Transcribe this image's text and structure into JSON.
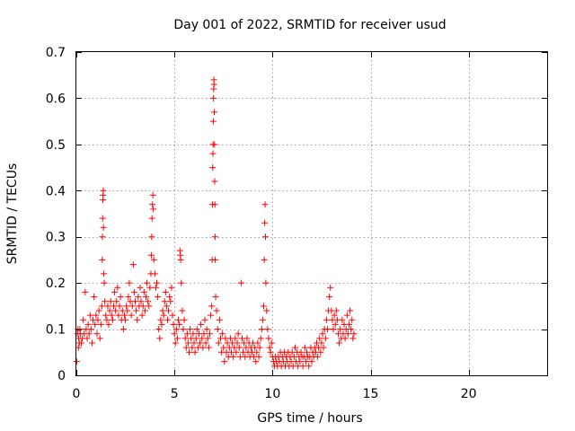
{
  "chart_data": {
    "type": "scatter",
    "title": "Day 001 of 2022, SRMTID for receiver usud",
    "xlabel": "GPS time / hours",
    "ylabel": "SRMTID / TECUs",
    "xlim": [
      0,
      24
    ],
    "ylim": [
      0,
      0.7
    ],
    "xticks": [
      0,
      5,
      10,
      15,
      20
    ],
    "yticks": [
      0,
      0.1,
      0.2,
      0.3,
      0.4,
      0.5,
      0.6,
      0.7
    ],
    "xtick_labels": [
      "0",
      "5",
      "10",
      "15",
      "20"
    ],
    "ytick_labels": [
      "0",
      "0.1",
      "0.2",
      "0.3",
      "0.4",
      "0.5",
      "0.6",
      "0.7"
    ],
    "grid": true,
    "marker": "+",
    "color": "#ff0000",
    "series": [
      {
        "name": "SRMTID",
        "points": [
          [
            0.02,
            0.03
          ],
          [
            0.05,
            0.09
          ],
          [
            0.08,
            0.1
          ],
          [
            0.1,
            0.06
          ],
          [
            0.12,
            0.08
          ],
          [
            0.15,
            0.07
          ],
          [
            0.18,
            0.1
          ],
          [
            0.2,
            0.09
          ],
          [
            0.25,
            0.07
          ],
          [
            0.3,
            0.08
          ],
          [
            0.35,
            0.12
          ],
          [
            0.4,
            0.09
          ],
          [
            0.45,
            0.18
          ],
          [
            0.5,
            0.1
          ],
          [
            0.55,
            0.08
          ],
          [
            0.6,
            0.11
          ],
          [
            0.65,
            0.09
          ],
          [
            0.7,
            0.13
          ],
          [
            0.75,
            0.1
          ],
          [
            0.8,
            0.07
          ],
          [
            0.85,
            0.12
          ],
          [
            0.9,
            0.17
          ],
          [
            0.95,
            0.11
          ],
          [
            1.0,
            0.13
          ],
          [
            1.05,
            0.09
          ],
          [
            1.1,
            0.12
          ],
          [
            1.15,
            0.14
          ],
          [
            1.2,
            0.08
          ],
          [
            1.25,
            0.11
          ],
          [
            1.3,
            0.15
          ],
          [
            1.32,
            0.25
          ],
          [
            1.33,
            0.3
          ],
          [
            1.34,
            0.34
          ],
          [
            1.35,
            0.38
          ],
          [
            1.36,
            0.39
          ],
          [
            1.37,
            0.4
          ],
          [
            1.38,
            0.32
          ],
          [
            1.4,
            0.22
          ],
          [
            1.42,
            0.2
          ],
          [
            1.45,
            0.16
          ],
          [
            1.5,
            0.13
          ],
          [
            1.55,
            0.12
          ],
          [
            1.6,
            0.15
          ],
          [
            1.65,
            0.11
          ],
          [
            1.7,
            0.14
          ],
          [
            1.75,
            0.16
          ],
          [
            1.8,
            0.13
          ],
          [
            1.85,
            0.12
          ],
          [
            1.9,
            0.15
          ],
          [
            1.95,
            0.18
          ],
          [
            2.0,
            0.14
          ],
          [
            2.05,
            0.16
          ],
          [
            2.1,
            0.19
          ],
          [
            2.15,
            0.13
          ],
          [
            2.2,
            0.15
          ],
          [
            2.25,
            0.17
          ],
          [
            2.3,
            0.12
          ],
          [
            2.35,
            0.14
          ],
          [
            2.4,
            0.1
          ],
          [
            2.45,
            0.13
          ],
          [
            2.5,
            0.12
          ],
          [
            2.55,
            0.15
          ],
          [
            2.6,
            0.14
          ],
          [
            2.65,
            0.17
          ],
          [
            2.7,
            0.2
          ],
          [
            2.75,
            0.16
          ],
          [
            2.8,
            0.13
          ],
          [
            2.85,
            0.15
          ],
          [
            2.9,
            0.24
          ],
          [
            2.95,
            0.18
          ],
          [
            3.0,
            0.16
          ],
          [
            3.05,
            0.14
          ],
          [
            3.1,
            0.12
          ],
          [
            3.15,
            0.17
          ],
          [
            3.2,
            0.15
          ],
          [
            3.25,
            0.19
          ],
          [
            3.3,
            0.16
          ],
          [
            3.35,
            0.13
          ],
          [
            3.4,
            0.15
          ],
          [
            3.45,
            0.18
          ],
          [
            3.5,
            0.14
          ],
          [
            3.55,
            0.17
          ],
          [
            3.6,
            0.2
          ],
          [
            3.65,
            0.16
          ],
          [
            3.7,
            0.15
          ],
          [
            3.75,
            0.19
          ],
          [
            3.8,
            0.22
          ],
          [
            3.82,
            0.26
          ],
          [
            3.84,
            0.3
          ],
          [
            3.86,
            0.34
          ],
          [
            3.88,
            0.37
          ],
          [
            3.9,
            0.39
          ],
          [
            3.92,
            0.36
          ],
          [
            3.95,
            0.25
          ],
          [
            4.0,
            0.22
          ],
          [
            4.05,
            0.19
          ],
          [
            4.1,
            0.2
          ],
          [
            4.15,
            0.17
          ],
          [
            4.2,
            0.1
          ],
          [
            4.25,
            0.08
          ],
          [
            4.3,
            0.12
          ],
          [
            4.35,
            0.11
          ],
          [
            4.4,
            0.14
          ],
          [
            4.45,
            0.13
          ],
          [
            4.5,
            0.16
          ],
          [
            4.55,
            0.18
          ],
          [
            4.6,
            0.15
          ],
          [
            4.65,
            0.12
          ],
          [
            4.7,
            0.14
          ],
          [
            4.75,
            0.17
          ],
          [
            4.8,
            0.16
          ],
          [
            4.85,
            0.19
          ],
          [
            4.9,
            0.13
          ],
          [
            4.95,
            0.11
          ],
          [
            5.0,
            0.09
          ],
          [
            5.05,
            0.07
          ],
          [
            5.1,
            0.1
          ],
          [
            5.15,
            0.08
          ],
          [
            5.2,
            0.12
          ],
          [
            5.25,
            0.11
          ],
          [
            5.28,
            0.27
          ],
          [
            5.3,
            0.26
          ],
          [
            5.32,
            0.25
          ],
          [
            5.35,
            0.2
          ],
          [
            5.4,
            0.14
          ],
          [
            5.45,
            0.1
          ],
          [
            5.5,
            0.12
          ],
          [
            5.55,
            0.08
          ],
          [
            5.6,
            0.06
          ],
          [
            5.65,
            0.09
          ],
          [
            5.7,
            0.07
          ],
          [
            5.75,
            0.05
          ],
          [
            5.8,
            0.1
          ],
          [
            5.85,
            0.08
          ],
          [
            5.9,
            0.06
          ],
          [
            5.95,
            0.09
          ],
          [
            6.0,
            0.07
          ],
          [
            6.05,
            0.05
          ],
          [
            6.1,
            0.08
          ],
          [
            6.15,
            0.1
          ],
          [
            6.2,
            0.06
          ],
          [
            6.25,
            0.09
          ],
          [
            6.3,
            0.07
          ],
          [
            6.35,
            0.11
          ],
          [
            6.4,
            0.08
          ],
          [
            6.45,
            0.06
          ],
          [
            6.5,
            0.09
          ],
          [
            6.55,
            0.12
          ],
          [
            6.6,
            0.07
          ],
          [
            6.65,
            0.1
          ],
          [
            6.7,
            0.08
          ],
          [
            6.75,
            0.06
          ],
          [
            6.8,
            0.09
          ],
          [
            6.85,
            0.13
          ],
          [
            6.9,
            0.15
          ],
          [
            6.92,
            0.25
          ],
          [
            6.94,
            0.37
          ],
          [
            6.95,
            0.45
          ],
          [
            6.96,
            0.48
          ],
          [
            6.97,
            0.5
          ],
          [
            6.98,
            0.55
          ],
          [
            6.99,
            0.6
          ],
          [
            7.0,
            0.62
          ],
          [
            7.01,
            0.64
          ],
          [
            7.02,
            0.63
          ],
          [
            7.03,
            0.57
          ],
          [
            7.04,
            0.5
          ],
          [
            7.05,
            0.42
          ],
          [
            7.06,
            0.37
          ],
          [
            7.07,
            0.3
          ],
          [
            7.08,
            0.25
          ],
          [
            7.1,
            0.17
          ],
          [
            7.15,
            0.14
          ],
          [
            7.2,
            0.1
          ],
          [
            7.25,
            0.07
          ],
          [
            7.3,
            0.12
          ],
          [
            7.35,
            0.08
          ],
          [
            7.4,
            0.05
          ],
          [
            7.45,
            0.09
          ],
          [
            7.5,
            0.06
          ],
          [
            7.55,
            0.03
          ],
          [
            7.6,
            0.08
          ],
          [
            7.65,
            0.05
          ],
          [
            7.7,
            0.07
          ],
          [
            7.75,
            0.04
          ],
          [
            7.8,
            0.06
          ],
          [
            7.85,
            0.08
          ],
          [
            7.9,
            0.05
          ],
          [
            7.95,
            0.07
          ],
          [
            8.0,
            0.04
          ],
          [
            8.05,
            0.06
          ],
          [
            8.1,
            0.08
          ],
          [
            8.15,
            0.05
          ],
          [
            8.2,
            0.07
          ],
          [
            8.25,
            0.09
          ],
          [
            8.3,
            0.06
          ],
          [
            8.35,
            0.04
          ],
          [
            8.4,
            0.2
          ],
          [
            8.45,
            0.08
          ],
          [
            8.5,
            0.05
          ],
          [
            8.55,
            0.07
          ],
          [
            8.6,
            0.04
          ],
          [
            8.65,
            0.06
          ],
          [
            8.7,
            0.08
          ],
          [
            8.75,
            0.05
          ],
          [
            8.8,
            0.07
          ],
          [
            8.85,
            0.04
          ],
          [
            8.9,
            0.06
          ],
          [
            8.95,
            0.05
          ],
          [
            9.0,
            0.07
          ],
          [
            9.05,
            0.04
          ],
          [
            9.1,
            0.06
          ],
          [
            9.15,
            0.03
          ],
          [
            9.2,
            0.05
          ],
          [
            9.25,
            0.07
          ],
          [
            9.3,
            0.04
          ],
          [
            9.35,
            0.06
          ],
          [
            9.4,
            0.08
          ],
          [
            9.45,
            0.1
          ],
          [
            9.5,
            0.12
          ],
          [
            9.55,
            0.15
          ],
          [
            9.58,
            0.25
          ],
          [
            9.6,
            0.33
          ],
          [
            9.62,
            0.37
          ],
          [
            9.64,
            0.3
          ],
          [
            9.66,
            0.2
          ],
          [
            9.7,
            0.14
          ],
          [
            9.75,
            0.1
          ],
          [
            9.8,
            0.08
          ],
          [
            9.85,
            0.06
          ],
          [
            9.9,
            0.05
          ],
          [
            9.95,
            0.07
          ],
          [
            10.0,
            0.04
          ],
          [
            10.05,
            0.03
          ],
          [
            10.1,
            0.02
          ],
          [
            10.15,
            0.04
          ],
          [
            10.2,
            0.03
          ],
          [
            10.25,
            0.02
          ],
          [
            10.3,
            0.04
          ],
          [
            10.35,
            0.03
          ],
          [
            10.4,
            0.05
          ],
          [
            10.45,
            0.02
          ],
          [
            10.5,
            0.04
          ],
          [
            10.55,
            0.03
          ],
          [
            10.6,
            0.05
          ],
          [
            10.65,
            0.02
          ],
          [
            10.7,
            0.04
          ],
          [
            10.75,
            0.03
          ],
          [
            10.8,
            0.05
          ],
          [
            10.85,
            0.02
          ],
          [
            10.9,
            0.04
          ],
          [
            10.95,
            0.03
          ],
          [
            11.0,
            0.05
          ],
          [
            11.05,
            0.02
          ],
          [
            11.1,
            0.04
          ],
          [
            11.15,
            0.06
          ],
          [
            11.2,
            0.03
          ],
          [
            11.25,
            0.05
          ],
          [
            11.3,
            0.02
          ],
          [
            11.35,
            0.04
          ],
          [
            11.4,
            0.03
          ],
          [
            11.45,
            0.05
          ],
          [
            11.5,
            0.04
          ],
          [
            11.55,
            0.02
          ],
          [
            11.6,
            0.04
          ],
          [
            11.65,
            0.06
          ],
          [
            11.7,
            0.03
          ],
          [
            11.75,
            0.05
          ],
          [
            11.8,
            0.04
          ],
          [
            11.85,
            0.02
          ],
          [
            11.9,
            0.04
          ],
          [
            11.95,
            0.06
          ],
          [
            12.0,
            0.03
          ],
          [
            12.05,
            0.05
          ],
          [
            12.1,
            0.04
          ],
          [
            12.15,
            0.06
          ],
          [
            12.2,
            0.05
          ],
          [
            12.25,
            0.07
          ],
          [
            12.3,
            0.04
          ],
          [
            12.35,
            0.06
          ],
          [
            12.4,
            0.08
          ],
          [
            12.45,
            0.05
          ],
          [
            12.5,
            0.07
          ],
          [
            12.55,
            0.09
          ],
          [
            12.6,
            0.06
          ],
          [
            12.65,
            0.1
          ],
          [
            12.7,
            0.08
          ],
          [
            12.75,
            0.12
          ],
          [
            12.8,
            0.1
          ],
          [
            12.85,
            0.14
          ],
          [
            12.9,
            0.17
          ],
          [
            12.95,
            0.19
          ],
          [
            13.0,
            0.14
          ],
          [
            13.05,
            0.12
          ],
          [
            13.1,
            0.1
          ],
          [
            13.15,
            0.13
          ],
          [
            13.2,
            0.11
          ],
          [
            13.25,
            0.14
          ],
          [
            13.3,
            0.12
          ],
          [
            13.35,
            0.09
          ],
          [
            13.4,
            0.07
          ],
          [
            13.45,
            0.1
          ],
          [
            13.5,
            0.08
          ],
          [
            13.55,
            0.12
          ],
          [
            13.6,
            0.09
          ],
          [
            13.65,
            0.11
          ],
          [
            13.7,
            0.08
          ],
          [
            13.75,
            0.1
          ],
          [
            13.8,
            0.13
          ],
          [
            13.85,
            0.09
          ],
          [
            13.9,
            0.11
          ],
          [
            13.95,
            0.14
          ],
          [
            14.0,
            0.1
          ],
          [
            14.05,
            0.12
          ],
          [
            14.1,
            0.08
          ],
          [
            14.15,
            0.09
          ]
        ]
      }
    ]
  }
}
